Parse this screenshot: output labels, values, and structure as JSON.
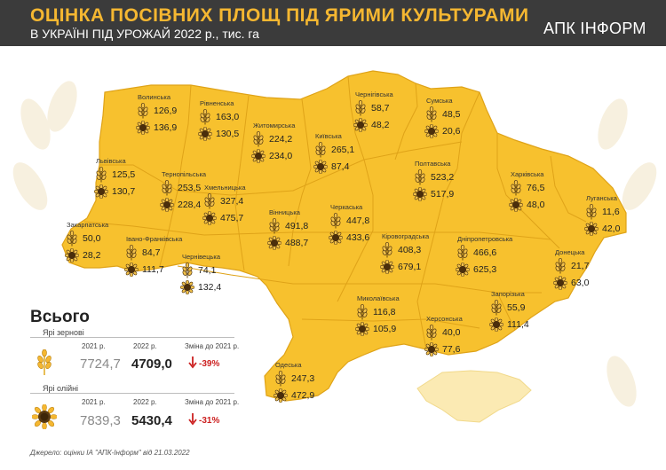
{
  "header": {
    "title": "ОЦІНКА ПОСІВНИХ ПЛОЩ ПІД ЯРИМИ КУЛЬТУРАМИ",
    "subtitle": "В УКРАЇНІ ПІД УРОЖАЙ 2022 р., тис. га",
    "logo": "АПК ІНФОРМ"
  },
  "colors": {
    "map": "#f7c12e",
    "border": "#dfa318",
    "crimea": "#fbeab3",
    "header": "#3b3b3b",
    "accent": "#f5b731",
    "down": "#cc2020"
  },
  "regions": [
    {
      "name": "Волинська",
      "grain": "126,9",
      "oil": "136,9"
    },
    {
      "name": "Рівненська",
      "grain": "163,0",
      "oil": "130,5"
    },
    {
      "name": "Житомирська",
      "grain": "224,2",
      "oil": "234,0"
    },
    {
      "name": "Київська",
      "grain": "265,1",
      "oil": "87,4"
    },
    {
      "name": "Чернігівська",
      "grain": "58,7",
      "oil": "48,2"
    },
    {
      "name": "Сумська",
      "grain": "48,5",
      "oil": "20,6"
    },
    {
      "name": "Львівська",
      "grain": "125,5",
      "oil": "130,7"
    },
    {
      "name": "Тернопільська",
      "grain": "253,5",
      "oil": "228,4"
    },
    {
      "name": "Хмельницька",
      "grain": "327,4",
      "oil": "475,7"
    },
    {
      "name": "Вінницька",
      "grain": "491,8",
      "oil": "488,7"
    },
    {
      "name": "Черкаська",
      "grain": "447,8",
      "oil": "433,6"
    },
    {
      "name": "Полтавська",
      "grain": "523,2",
      "oil": "517,9"
    },
    {
      "name": "Харківська",
      "grain": "76,5",
      "oil": "48,0"
    },
    {
      "name": "Луганська",
      "grain": "11,6",
      "oil": "42,0"
    },
    {
      "name": "Закарпатська",
      "grain": "50,0",
      "oil": "28,2"
    },
    {
      "name": "Івано-Франківська",
      "grain": "84,7",
      "oil": "111,7"
    },
    {
      "name": "Чернівецька",
      "grain": "74,1",
      "oil": "132,4"
    },
    {
      "name": "Кіровоградська",
      "grain": "408,3",
      "oil": "679,1"
    },
    {
      "name": "Дніпропетровська",
      "grain": "466,6",
      "oil": "625,3"
    },
    {
      "name": "Донецька",
      "grain": "21,7",
      "oil": "63,0"
    },
    {
      "name": "Запорізька",
      "grain": "55,9",
      "oil": "111,4"
    },
    {
      "name": "Миколаївська",
      "grain": "116,8",
      "oil": "105,9"
    },
    {
      "name": "Херсонська",
      "grain": "40,0",
      "oil": "77,6"
    },
    {
      "name": "Одеська",
      "grain": "247,3",
      "oil": "472,9"
    }
  ],
  "totals": {
    "title": "Всього",
    "grain": {
      "label": "Ярі зернові",
      "y2021_label": "2021 р.",
      "y2022_label": "2022 р.",
      "change_label": "Зміна до 2021 р.",
      "v2021": "7724,7",
      "v2022": "4709,0",
      "change": "-39%"
    },
    "oil": {
      "label": "Ярі олійні",
      "y2021_label": "2021 р.",
      "y2022_label": "2022 р.",
      "change_label": "Зміна до 2021 р.",
      "v2021": "7839,3",
      "v2022": "5430,4",
      "change": "-31%"
    }
  },
  "source": "Джерело: оцінки ІА \"АПК-Інформ\" від 21.03.2022"
}
